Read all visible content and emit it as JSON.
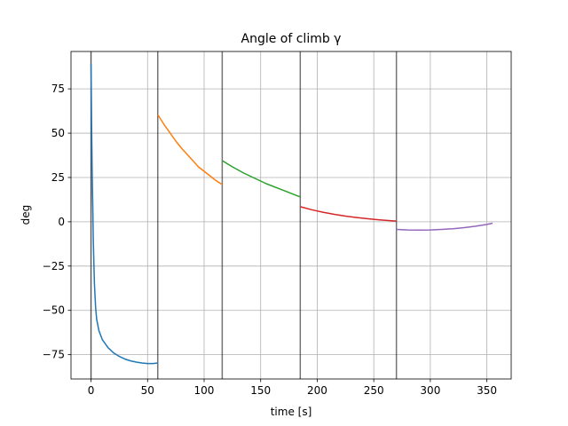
{
  "chart_data": {
    "type": "line",
    "title": "Angle of climb γ",
    "xlabel": "time [s]",
    "ylabel": "deg",
    "xlim": [
      -17.7,
      371.5
    ],
    "ylim": [
      -88.7,
      96.1
    ],
    "grid": true,
    "x_ticks": [
      0,
      50,
      100,
      150,
      200,
      250,
      300,
      350
    ],
    "y_ticks": [
      -75,
      -50,
      -25,
      0,
      25,
      50,
      75
    ],
    "vertical_lines": [
      0,
      59,
      116,
      185,
      270
    ],
    "series": [
      {
        "color": "#1f77b4",
        "x": [
          0,
          0.5,
          1,
          1.5,
          2,
          3,
          4,
          5,
          7,
          10,
          15,
          20,
          25,
          30,
          35,
          40,
          45,
          50,
          55,
          59
        ],
        "y": [
          89,
          55,
          30,
          10,
          -10,
          -35,
          -48,
          -55,
          -61.5,
          -66.5,
          -71,
          -74,
          -76,
          -77.5,
          -78.5,
          -79.2,
          -79.7,
          -80,
          -80,
          -79.7
        ]
      },
      {
        "color": "#ff7f0e",
        "x": [
          59,
          65,
          70,
          75,
          80,
          85,
          90,
          95,
          100,
          105,
          110,
          116
        ],
        "y": [
          60.5,
          54.5,
          50,
          45.5,
          41.5,
          38,
          34.5,
          31,
          28.5,
          26,
          23.5,
          21
        ]
      },
      {
        "color": "#2ca02c",
        "x": [
          116,
          125,
          135,
          145,
          155,
          165,
          175,
          185
        ],
        "y": [
          34.5,
          31,
          27.5,
          24.5,
          21.5,
          19,
          16.5,
          14
        ]
      },
      {
        "color": "#d62728",
        "x": [
          185,
          195,
          205,
          215,
          225,
          235,
          245,
          255,
          270
        ],
        "y": [
          8.5,
          6.8,
          5.4,
          4.2,
          3.2,
          2.4,
          1.7,
          1.1,
          0.4
        ]
      },
      {
        "color": "#9467bd",
        "x": [
          270,
          280,
          290,
          300,
          310,
          320,
          330,
          340,
          350,
          355
        ],
        "y": [
          -4.3,
          -4.6,
          -4.7,
          -4.6,
          -4.3,
          -3.9,
          -3.3,
          -2.5,
          -1.5,
          -0.8
        ]
      }
    ]
  }
}
